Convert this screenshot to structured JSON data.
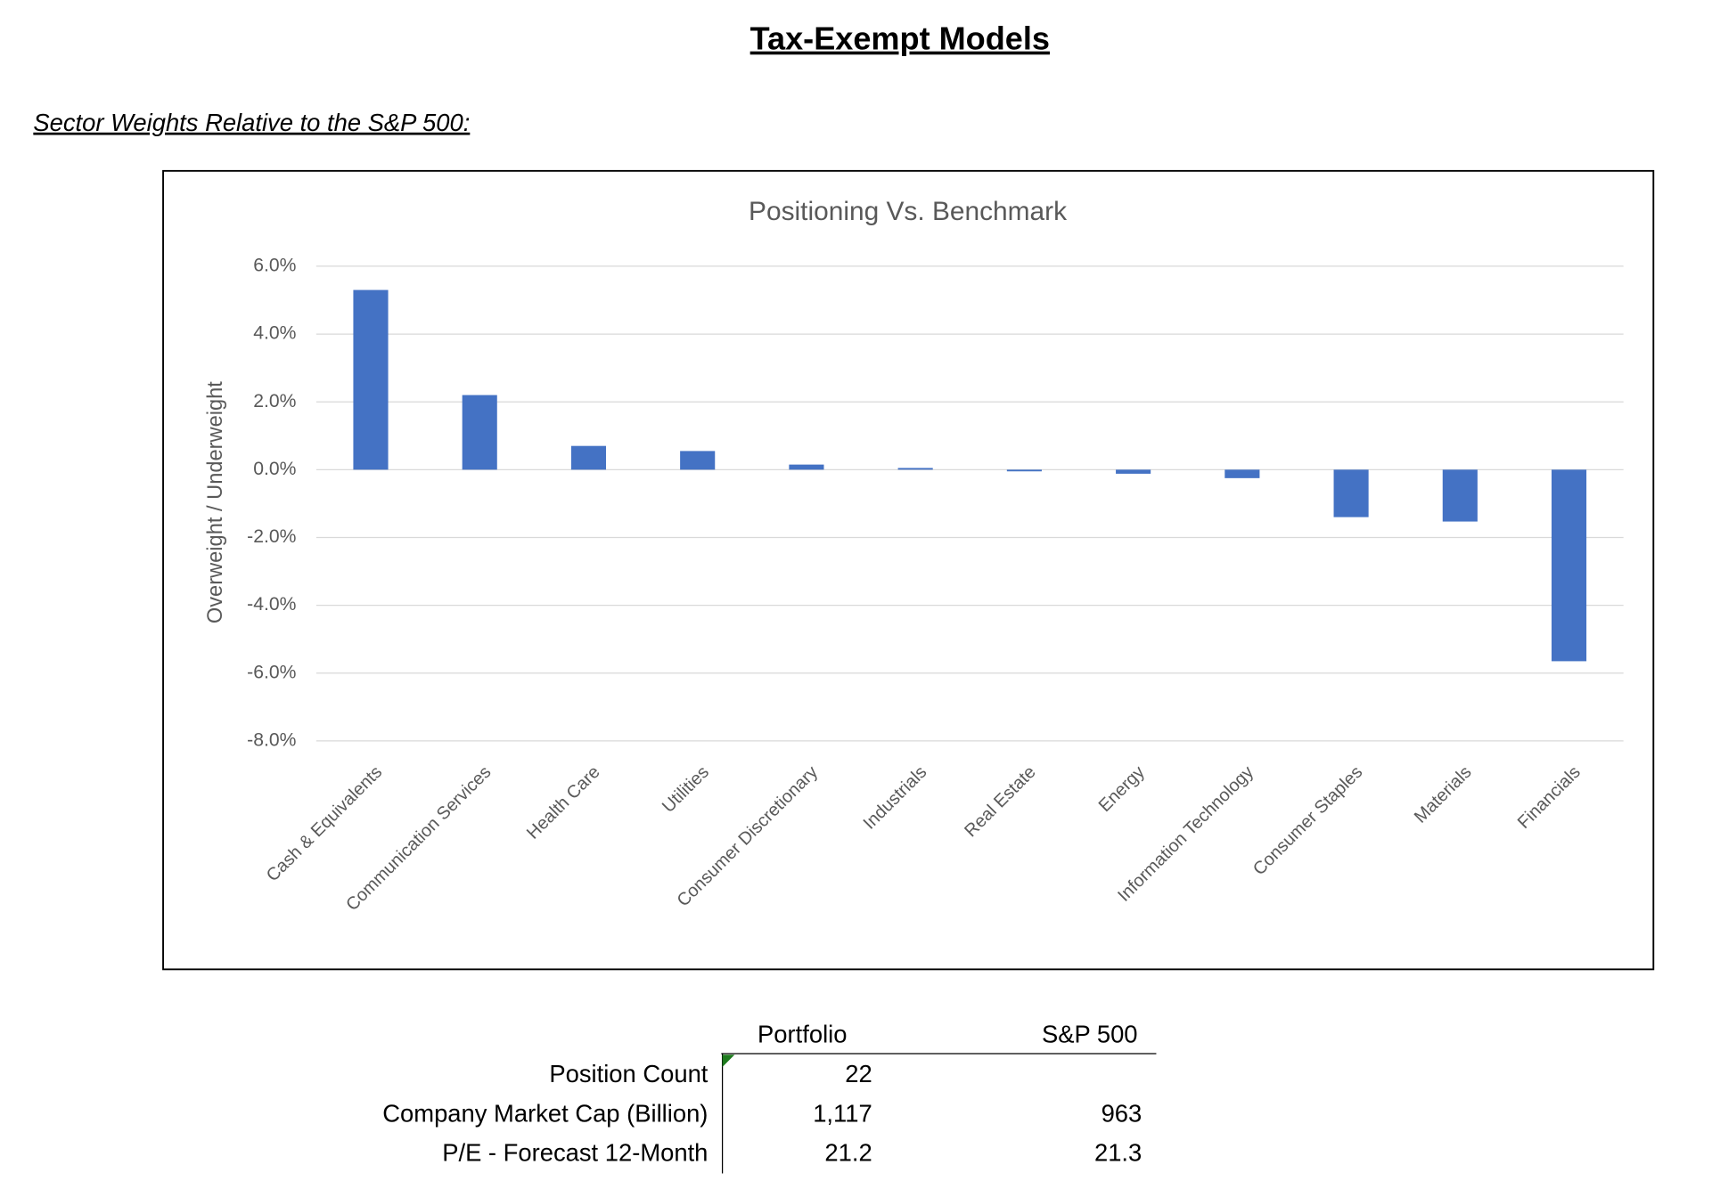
{
  "header": {
    "title": "Tax-Exempt Models",
    "subtitle": "Sector Weights Relative to the S&P 500:"
  },
  "chart_data": {
    "type": "bar",
    "title": "Positioning Vs. Benchmark",
    "y_label": "Overweight / Underweight",
    "categories": [
      "Cash & Equivalents",
      "Communication Services",
      "Health Care",
      "Utilities",
      "Consumer Discretionary",
      "Industrials",
      "Real Estate",
      "Energy",
      "Information Technology",
      "Consumer Staples",
      "Materials",
      "Financials"
    ],
    "values": [
      5.3,
      2.2,
      0.7,
      0.55,
      0.15,
      0.05,
      -0.05,
      -0.12,
      -0.25,
      -1.4,
      -1.53,
      -5.65
    ],
    "color": "#4472c4",
    "ylim": [
      -8,
      6
    ],
    "yticks": [
      {
        "value": 6,
        "label": "6.0%"
      },
      {
        "value": 4,
        "label": "4.0%"
      },
      {
        "value": 2,
        "label": "2.0%"
      },
      {
        "value": 0,
        "label": "0.0%"
      },
      {
        "value": -2,
        "label": "-2.0%"
      },
      {
        "value": -4,
        "label": "-4.0%"
      },
      {
        "value": -6,
        "label": "-6.0%"
      },
      {
        "value": -8,
        "label": "-8.0%"
      }
    ],
    "grid": true
  },
  "table": {
    "columns": [
      "Portfolio",
      "S&P 500"
    ],
    "rows": [
      [
        "Position Count",
        "22"
      ],
      [
        "Company Market Cap (Billion)",
        "1,117",
        "963"
      ],
      [
        "P/E - Forecast 12-Month",
        "21.2",
        "21.3"
      ]
    ]
  }
}
